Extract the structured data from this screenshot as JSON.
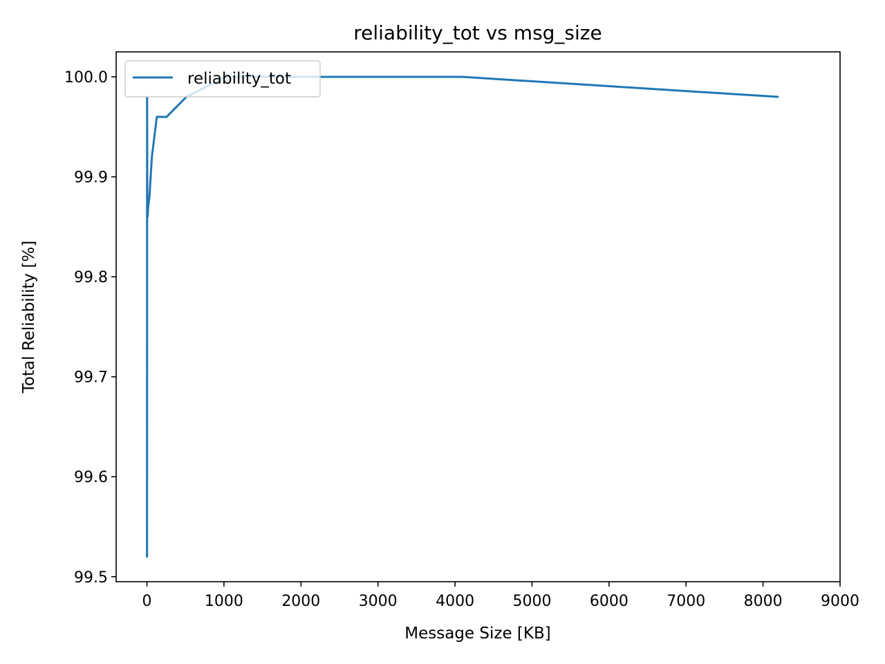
{
  "chart_data": {
    "type": "line",
    "title": "reliability_tot vs msg_size",
    "xlabel": "Message Size [KB]",
    "ylabel": "Total Reliability [%]",
    "xlim": [
      -400,
      9000
    ],
    "ylim": [
      99.495,
      100.025
    ],
    "xticks": [
      0,
      1000,
      2000,
      3000,
      4000,
      5000,
      6000,
      7000,
      8000,
      9000
    ],
    "xtick_labels": [
      "0",
      "1000",
      "2000",
      "3000",
      "4000",
      "5000",
      "6000",
      "7000",
      "8000",
      "9000"
    ],
    "yticks": [
      99.5,
      99.6,
      99.7,
      99.8,
      99.9,
      100.0
    ],
    "ytick_labels": [
      "99.5",
      "99.6",
      "99.7",
      "99.8",
      "99.9",
      "100.0"
    ],
    "grid": false,
    "legend_position": "upper-left",
    "series": [
      {
        "name": "reliability_tot",
        "color": "#1f77b4",
        "x": [
          1,
          2,
          4,
          8,
          16,
          32,
          64,
          128,
          256,
          512,
          1024,
          2048,
          4096,
          8192
        ],
        "y": [
          99.52,
          99.98,
          99.88,
          99.86,
          99.87,
          99.88,
          99.92,
          99.96,
          99.96,
          99.98,
          100.0,
          100.0,
          100.0,
          99.98
        ]
      }
    ]
  }
}
